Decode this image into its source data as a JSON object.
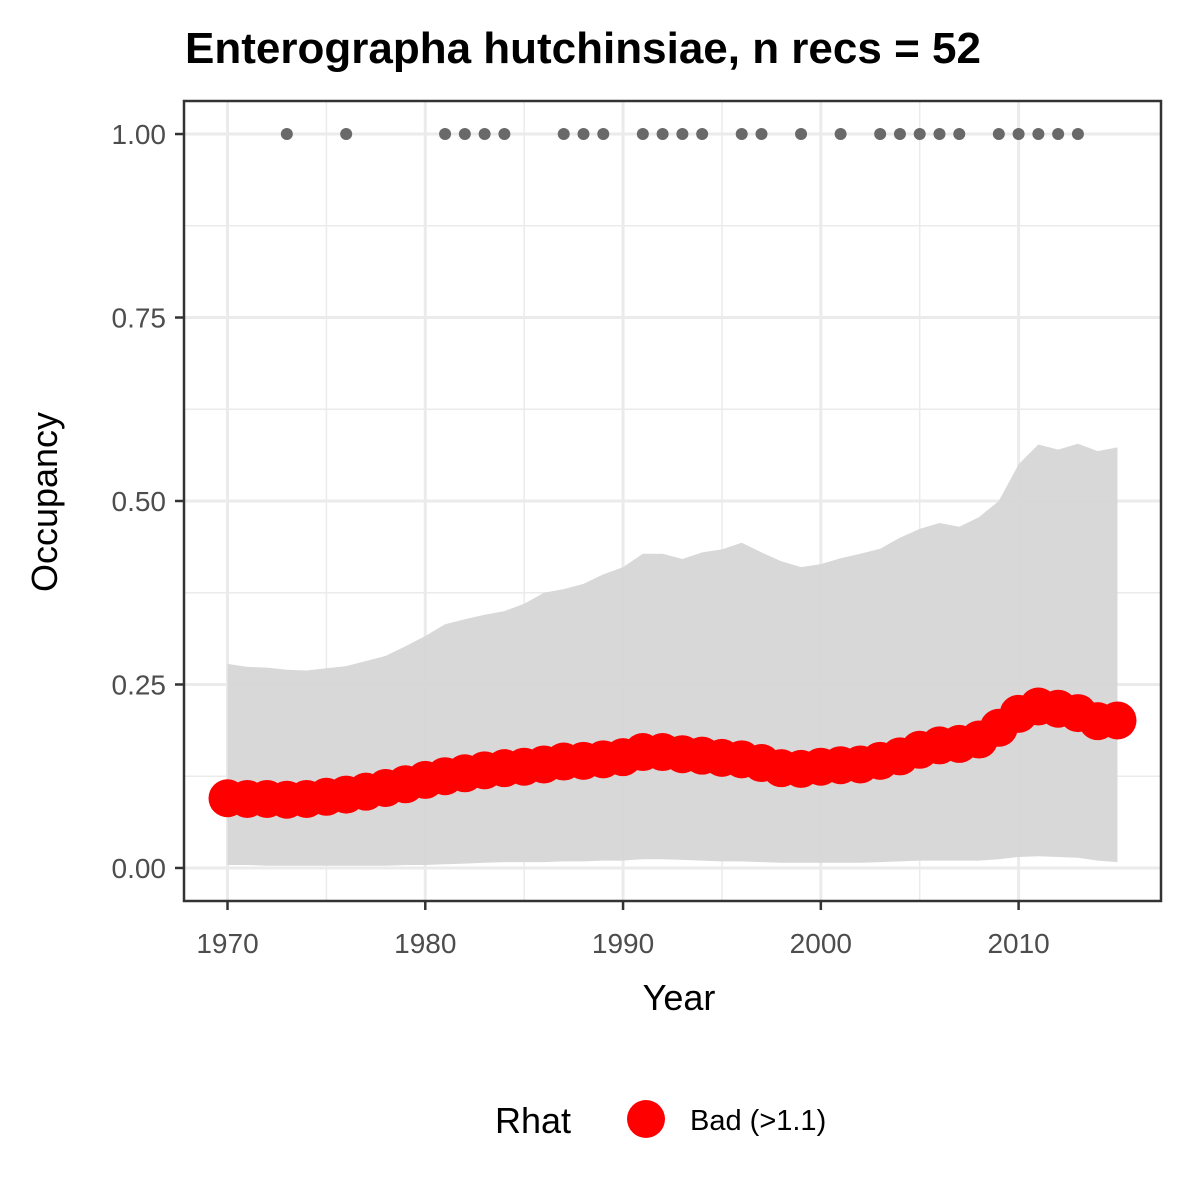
{
  "chart_data": {
    "type": "line",
    "title": "Enterographa hutchinsiae, n recs = 52",
    "xlabel": "Year",
    "ylabel": "Occupancy",
    "xlim": [
      1967.8,
      2017.2
    ],
    "ylim": [
      -0.045,
      1.045
    ],
    "x_ticks": [
      1970,
      1980,
      1990,
      2000,
      2010
    ],
    "y_ticks": [
      0.0,
      0.25,
      0.5,
      0.75,
      1.0
    ],
    "y_tick_labels": [
      "0.00",
      "0.25",
      "0.50",
      "0.75",
      "1.00"
    ],
    "grid": true,
    "x": [
      1970,
      1971,
      1972,
      1973,
      1974,
      1975,
      1976,
      1977,
      1978,
      1979,
      1980,
      1981,
      1982,
      1983,
      1984,
      1985,
      1986,
      1987,
      1988,
      1989,
      1990,
      1991,
      1992,
      1993,
      1994,
      1995,
      1996,
      1997,
      1998,
      1999,
      2000,
      2001,
      2002,
      2003,
      2004,
      2005,
      2006,
      2007,
      2008,
      2009,
      2010,
      2011,
      2012,
      2013,
      2014,
      2015
    ],
    "series": [
      {
        "name": "Occupancy",
        "color": "#ff0000",
        "values": [
          0.095,
          0.094,
          0.094,
          0.093,
          0.094,
          0.097,
          0.1,
          0.104,
          0.109,
          0.114,
          0.12,
          0.125,
          0.129,
          0.133,
          0.136,
          0.138,
          0.141,
          0.145,
          0.146,
          0.148,
          0.151,
          0.158,
          0.158,
          0.155,
          0.153,
          0.15,
          0.148,
          0.143,
          0.136,
          0.135,
          0.138,
          0.14,
          0.141,
          0.146,
          0.152,
          0.161,
          0.167,
          0.169,
          0.175,
          0.191,
          0.21,
          0.22,
          0.217,
          0.211,
          0.2,
          0.201
        ]
      }
    ],
    "ribbon": {
      "color": "#d6d6d6",
      "lower": [
        0.004,
        0.004,
        0.003,
        0.003,
        0.003,
        0.003,
        0.003,
        0.003,
        0.003,
        0.004,
        0.004,
        0.005,
        0.006,
        0.007,
        0.008,
        0.008,
        0.008,
        0.009,
        0.009,
        0.01,
        0.01,
        0.012,
        0.012,
        0.011,
        0.01,
        0.009,
        0.009,
        0.008,
        0.007,
        0.007,
        0.007,
        0.007,
        0.007,
        0.008,
        0.009,
        0.01,
        0.01,
        0.01,
        0.01,
        0.012,
        0.015,
        0.016,
        0.015,
        0.014,
        0.01,
        0.008
      ],
      "upper": [
        0.278,
        0.274,
        0.273,
        0.27,
        0.269,
        0.272,
        0.275,
        0.282,
        0.289,
        0.302,
        0.316,
        0.332,
        0.339,
        0.345,
        0.35,
        0.36,
        0.375,
        0.38,
        0.387,
        0.4,
        0.41,
        0.428,
        0.428,
        0.421,
        0.43,
        0.434,
        0.443,
        0.43,
        0.418,
        0.41,
        0.414,
        0.422,
        0.428,
        0.435,
        0.45,
        0.462,
        0.47,
        0.465,
        0.478,
        0.5,
        0.55,
        0.577,
        0.57,
        0.578,
        0.568,
        0.573
      ]
    },
    "records": {
      "color": "#696969",
      "y": 1.0,
      "years": [
        1973,
        1976,
        1981,
        1982,
        1983,
        1984,
        1987,
        1988,
        1989,
        1991,
        1992,
        1993,
        1994,
        1996,
        1997,
        1999,
        2001,
        2003,
        2004,
        2005,
        2006,
        2007,
        2009,
        2010,
        2011,
        2012,
        2013
      ]
    },
    "legend": {
      "title": "Rhat",
      "entries": [
        {
          "label": "Bad (>1.1)",
          "color": "#ff0000"
        }
      ],
      "position": "bottom"
    }
  }
}
